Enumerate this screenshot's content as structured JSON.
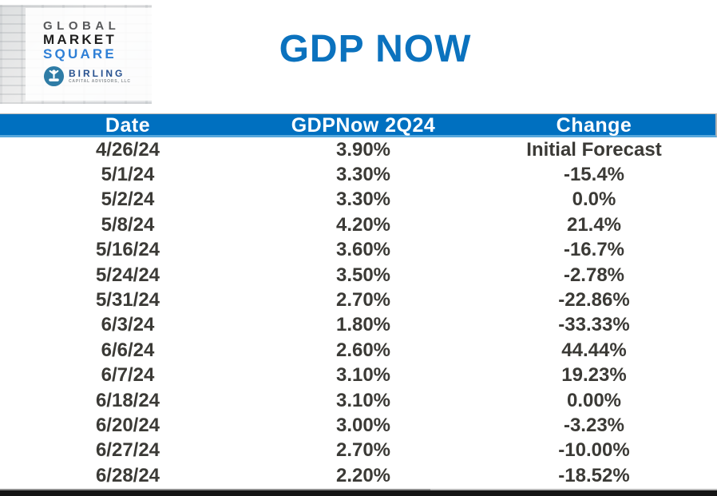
{
  "logo": {
    "line1": "GLOBAL",
    "line2": "MARKET",
    "line3": "SQUARE",
    "brand": "BIRLING",
    "brand_sub": "CAPITAL ADVISORS, LLC",
    "icon": "birling-log-roller-icon"
  },
  "title": "GDP NOW",
  "table": {
    "columns": [
      "Date",
      "GDPNow 2Q24",
      "Change"
    ],
    "rows": [
      [
        "4/26/24",
        "3.90%",
        "Initial Forecast"
      ],
      [
        "5/1/24",
        "3.30%",
        "-15.4%"
      ],
      [
        "5/2/24",
        "3.30%",
        "0.0%"
      ],
      [
        "5/8/24",
        "4.20%",
        "21.4%"
      ],
      [
        "5/16/24",
        "3.60%",
        "-16.7%"
      ],
      [
        "5/24/24",
        "3.50%",
        "-2.78%"
      ],
      [
        "5/31/24",
        "2.70%",
        "-22.86%"
      ],
      [
        "6/3/24",
        "1.80%",
        "-33.33%"
      ],
      [
        "6/6/24",
        "2.60%",
        "44.44%"
      ],
      [
        "6/7/24",
        "3.10%",
        "19.23%"
      ],
      [
        "6/18/24",
        "3.10%",
        "0.00%"
      ],
      [
        "6/20/24",
        "3.00%",
        "-3.23%"
      ],
      [
        "6/27/24",
        "2.70%",
        "-10.00%"
      ],
      [
        "6/28/24",
        "2.20%",
        "-18.52%"
      ]
    ]
  },
  "colors": {
    "header_bg": "#0070c0",
    "header_bottom_border": "#56a7dc",
    "title_blue": "#0b72be",
    "table_text": "#3b3a36",
    "logo_square_blue": "#2e7fd6",
    "logo_global_gray": "#58595b",
    "brand_navy": "#27518f",
    "brand_circle_blue": "#2f7ca6"
  },
  "chart_data": {
    "type": "table",
    "title": "GDP NOW",
    "columns": [
      "Date",
      "GDPNow 2Q24",
      "Change"
    ],
    "dates": [
      "4/26/24",
      "5/1/24",
      "5/2/24",
      "5/8/24",
      "5/16/24",
      "5/24/24",
      "5/31/24",
      "6/3/24",
      "6/6/24",
      "6/7/24",
      "6/18/24",
      "6/20/24",
      "6/27/24",
      "6/28/24"
    ],
    "gdpnow_2q24_pct": [
      3.9,
      3.3,
      3.3,
      4.2,
      3.6,
      3.5,
      2.7,
      1.8,
      2.6,
      3.1,
      3.1,
      3.0,
      2.7,
      2.2
    ],
    "change_pct": [
      null,
      -15.4,
      0.0,
      21.4,
      -16.7,
      -2.78,
      -22.86,
      -33.33,
      44.44,
      19.23,
      0.0,
      -3.23,
      -10.0,
      -18.52
    ],
    "change_labels": [
      "Initial Forecast",
      "-15.4%",
      "0.0%",
      "21.4%",
      "-16.7%",
      "-2.78%",
      "-22.86%",
      "-33.33%",
      "44.44%",
      "19.23%",
      "0.00%",
      "-3.23%",
      "-10.00%",
      "-18.52%"
    ]
  }
}
